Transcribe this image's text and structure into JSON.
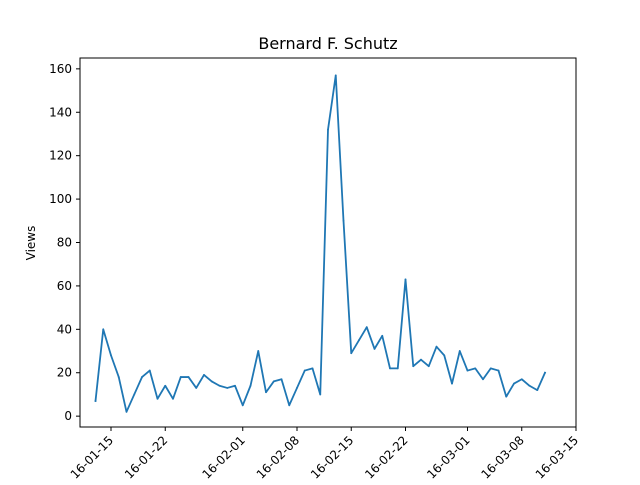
{
  "chart_data": {
    "type": "line",
    "title": "Bernard F. Schutz",
    "xlabel": "",
    "ylabel": "Views",
    "ylim": [
      -5,
      165
    ],
    "xlim": [
      "2016-01-11",
      "2016-03-15"
    ],
    "y_ticks": [
      0,
      20,
      40,
      60,
      80,
      100,
      120,
      140,
      160
    ],
    "y_tick_labels": [
      "0",
      "20",
      "40",
      "60",
      "80",
      "100",
      "120",
      "140",
      "160"
    ],
    "x_ticks": [
      "2016-01-15",
      "2016-01-22",
      "2016-02-01",
      "2016-02-08",
      "2016-02-15",
      "2016-02-22",
      "2016-03-01",
      "2016-03-08",
      "2016-03-15"
    ],
    "x_tick_labels": [
      "16-01-15",
      "16-01-22",
      "16-02-01",
      "16-02-08",
      "16-02-15",
      "16-02-22",
      "16-03-01",
      "16-03-08",
      "16-03-15"
    ],
    "grid": false,
    "line_color": "#1f77b4",
    "series": [
      {
        "x": [
          "2016-01-13",
          "2016-01-14",
          "2016-01-15",
          "2016-01-16",
          "2016-01-17",
          "2016-01-18",
          "2016-01-19",
          "2016-01-20",
          "2016-01-21",
          "2016-01-22",
          "2016-01-23",
          "2016-01-24",
          "2016-01-25",
          "2016-01-26",
          "2016-01-27",
          "2016-01-28",
          "2016-01-29",
          "2016-01-30",
          "2016-01-31",
          "2016-02-01",
          "2016-02-02",
          "2016-02-03",
          "2016-02-04",
          "2016-02-05",
          "2016-02-06",
          "2016-02-07",
          "2016-02-08",
          "2016-02-09",
          "2016-02-10",
          "2016-02-11",
          "2016-02-12",
          "2016-02-13",
          "2016-02-14",
          "2016-02-15",
          "2016-02-16",
          "2016-02-17",
          "2016-02-18",
          "2016-02-19",
          "2016-02-20",
          "2016-02-21",
          "2016-02-22",
          "2016-02-23",
          "2016-02-24",
          "2016-02-25",
          "2016-02-26",
          "2016-02-27",
          "2016-02-28",
          "2016-02-29",
          "2016-03-01",
          "2016-03-02",
          "2016-03-03",
          "2016-03-04",
          "2016-03-05",
          "2016-03-06",
          "2016-03-07",
          "2016-03-08",
          "2016-03-09",
          "2016-03-10",
          "2016-03-11"
        ],
        "y": [
          7,
          40,
          28,
          18,
          2,
          10,
          18,
          21,
          8,
          14,
          8,
          18,
          18,
          13,
          19,
          16,
          14,
          13,
          14,
          5,
          14,
          30,
          11,
          16,
          17,
          5,
          13,
          21,
          22,
          10,
          132,
          157,
          90,
          29,
          35,
          41,
          31,
          37,
          22,
          22,
          63,
          23,
          26,
          23,
          32,
          28,
          15,
          30,
          21,
          22,
          17,
          22,
          21,
          9,
          15,
          17,
          14,
          12,
          20
        ]
      }
    ]
  }
}
